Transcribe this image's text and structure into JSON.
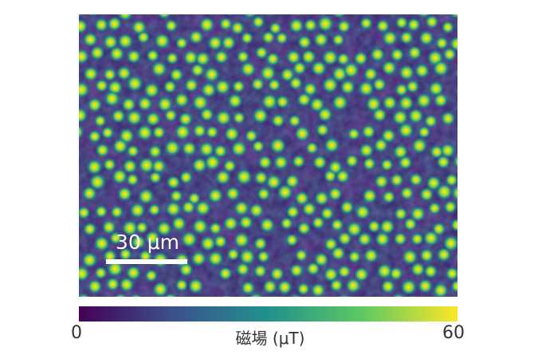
{
  "image": {
    "scale_bar": {
      "label": "30 μm"
    },
    "colorbar": {
      "min_label": "0",
      "max_label": "60",
      "title": "磁場 (μT)",
      "colormap": "viridis"
    },
    "colors": {
      "background": "#3f2f75",
      "bright": "#fde725",
      "mid": "#21918c",
      "low": "#440154"
    }
  }
}
